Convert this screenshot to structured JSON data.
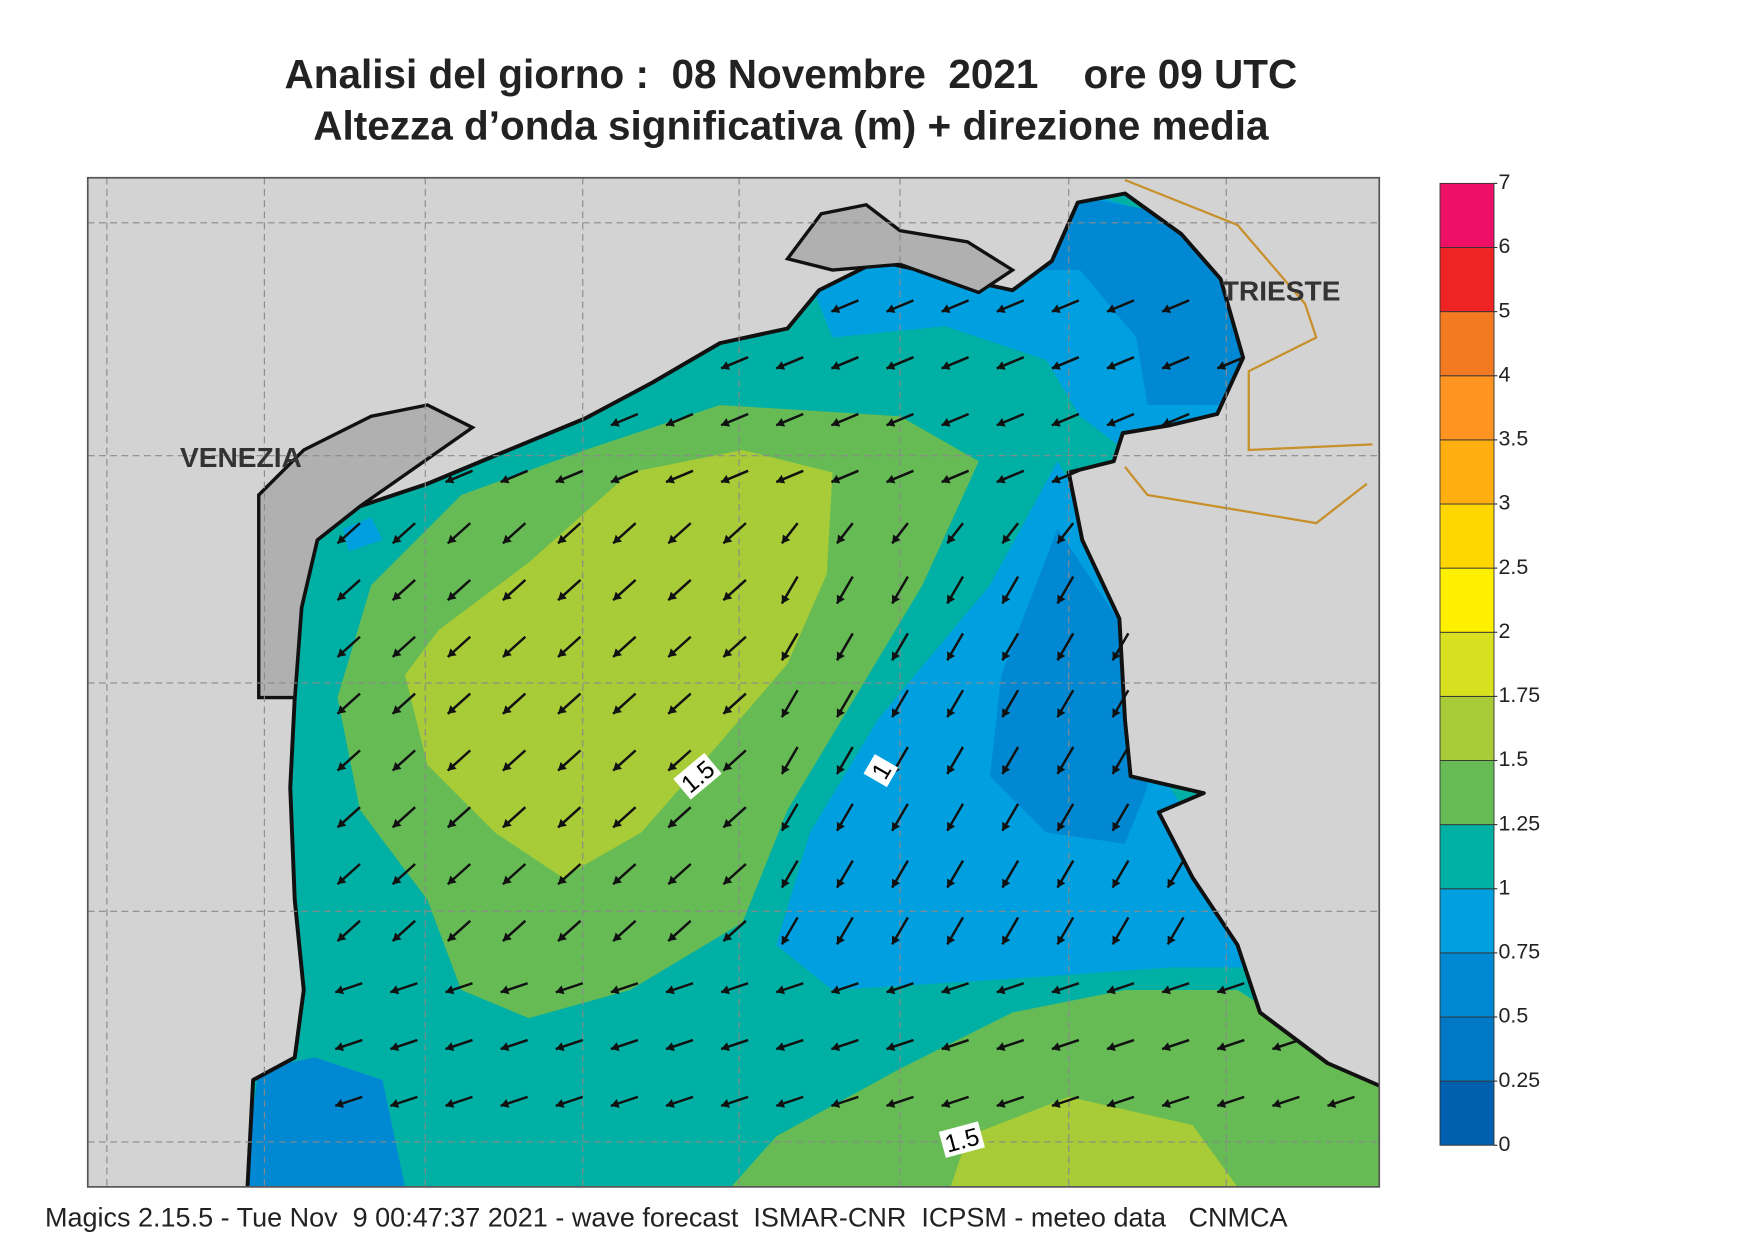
{
  "title": [
    "Analisi del giorno :  08 Novembre  2021    ore 09 UTC",
    "Altezza d’onda significativa (m) + direzione media"
  ],
  "map": {
    "labels": [
      "VENEZIA",
      "TRIESTE"
    ],
    "contour_labels": [
      "1.5",
      "1",
      "1.5"
    ]
  },
  "colorbar": {
    "ticks": [
      0,
      0.25,
      0.5,
      0.75,
      1,
      1.25,
      1.5,
      1.75,
      2,
      2.5,
      3,
      3.5,
      4,
      5,
      6,
      7
    ],
    "colors": [
      "#0060b0",
      "#0078c4",
      "#0088d2",
      "#00a0e0",
      "#00b0a4",
      "#66bb55",
      "#a8cb38",
      "#d8e020",
      "#fff000",
      "#ffd600",
      "#ffb010",
      "#ff9420",
      "#f47a22",
      "#ee2424",
      "#ee1066"
    ]
  },
  "footer": "Magics 2.15.5 - Tue Nov  9 00:47:37 2021 - wave forecast  ISMAR-CNR  ICPSM - meteo data   CNMCA"
}
